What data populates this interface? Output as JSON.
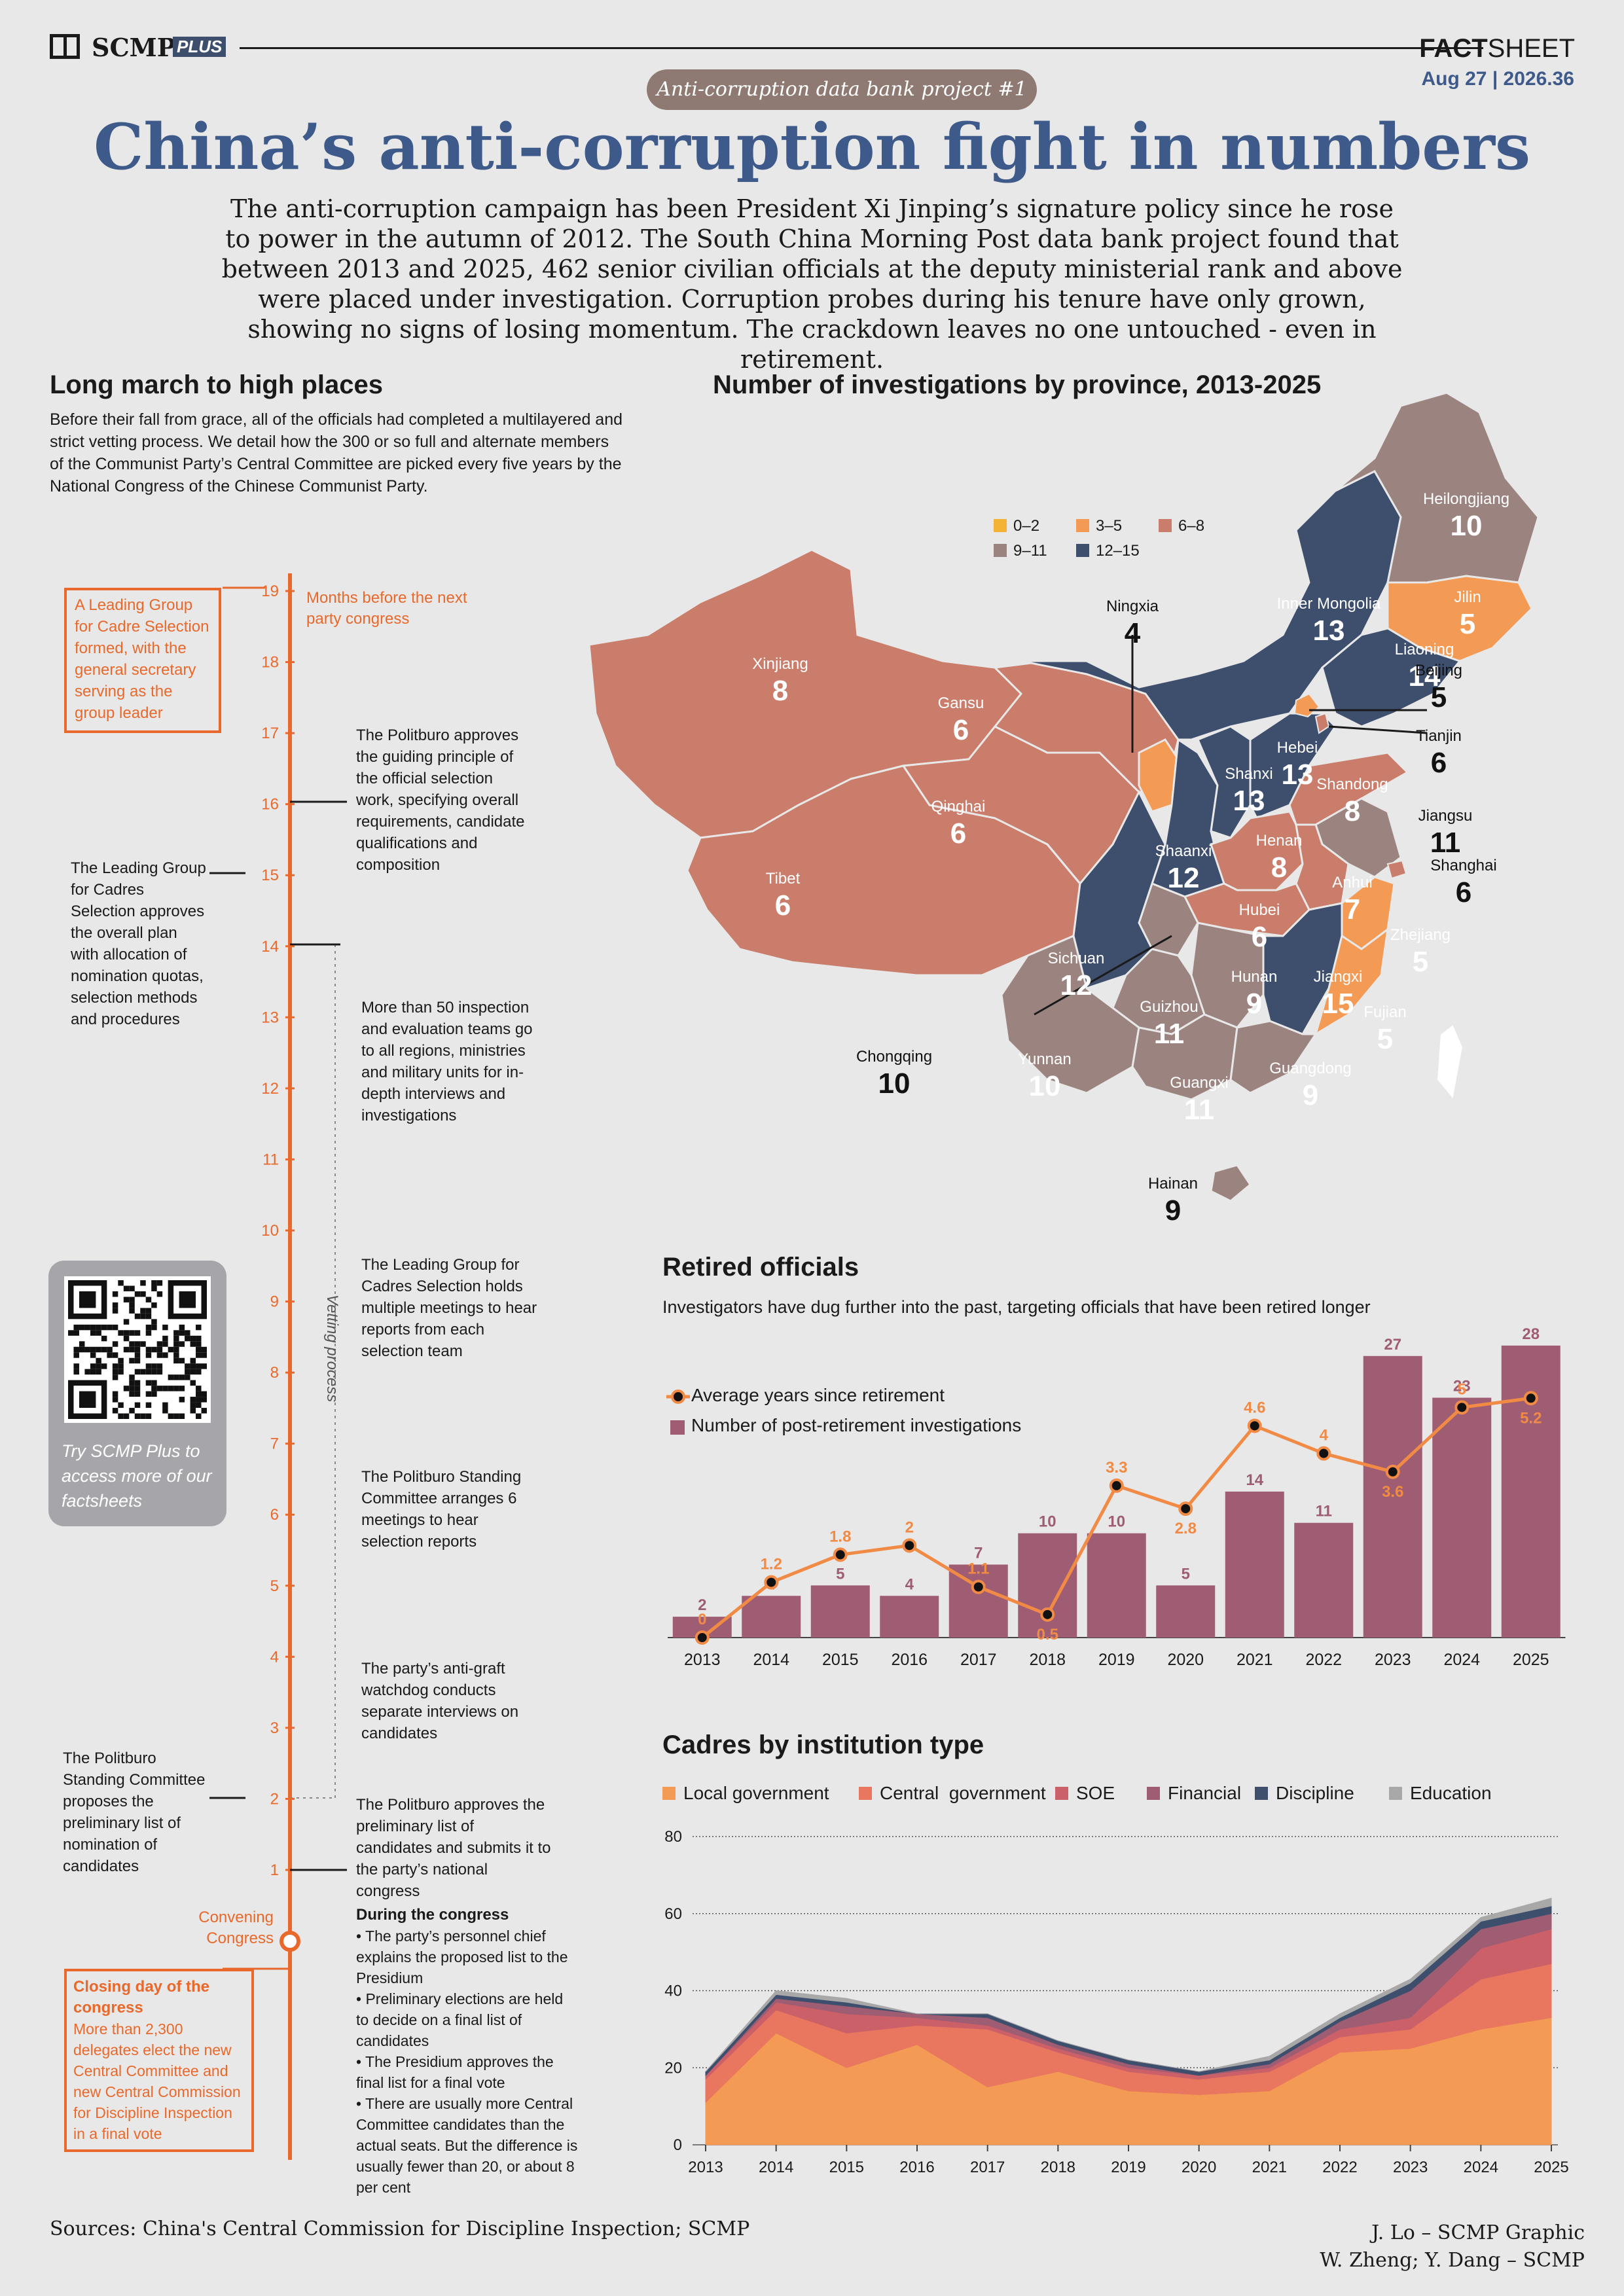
{
  "header": {
    "brand": "SCMP",
    "brand_plus": "PLUS",
    "factsheet_bold": "FACT",
    "factsheet_light": "SHEET",
    "date": "Aug 27 | 2026.36",
    "badge": "Anti-corruption data bank project #1",
    "title": "China’s anti-corruption fight in numbers",
    "intro": "The anti-corruption campaign has been President Xi Jinping’s signature policy since he rose to power in the autumn of 2012. The South China Morning Post data bank project found that between 2013 and 2025, 462 senior civilian officials at the deputy ministerial rank and above were placed under investigation. Corruption probes during his tenure have only grown, showing no signs of losing momentum. The crackdown leaves no one untouched - even in retirement."
  },
  "timeline": {
    "title": "Long march to high places",
    "intro": "Before their fall from grace, all of the officials had completed a multilayered and strict vetting process. We detail how the 300 or so full and alternate members of the Communist Party’s Central Committee are picked every five years by the National Congress of the Chinese Communist Party.",
    "axis_label": "Months before the next party congress",
    "vetting_label": "Vetting process",
    "convening_label": "Convening Congress",
    "months": [
      "19",
      "18",
      "17",
      "16",
      "15",
      "14",
      "13",
      "12",
      "11",
      "10",
      "9",
      "8",
      "7",
      "6",
      "5",
      "4",
      "3",
      "2",
      "1"
    ],
    "box_leading": "A Leading Group for Cadre Selection formed, with the general secretary serving as the group leader",
    "note_16": "The Politburo approves the guiding principle of the official selection work, specifying overall requirements, candidate qualifications and composition",
    "note_15": "The Leading Group for Cadres Selection approves the overall plan with allocation of nomination quotas, selection methods and procedures",
    "note_13": "More than 50 inspection and evaluation teams go to all regions, ministries and military units for in-depth interviews and investigations",
    "note_9": "The Leading Group for Cadres Selection holds multiple meetings to hear reports from each selection team",
    "note_6": "The Politburo Standing Committee arranges 6 meetings to hear selection reports",
    "note_4": "The party’s anti-graft watchdog conducts separate interviews on candidates",
    "note_2": "The Politburo Standing Committee proposes the preliminary list of nomination of candidates",
    "note_1": "The Politburo approves the preliminary list of candidates and submits it to the party’s national congress",
    "during_title": "During the congress",
    "during_items": [
      "• The party’s personnel chief explains the proposed list to the Presidium",
      "• Preliminary elections are held to decide on a final list of candidates",
      "• The Presidium approves the final list for a final vote",
      "• There are usually more Central Committee candidates than the actual seats. But the difference is usually fewer than 20, or about 8 per cent"
    ],
    "closing_title": "Closing day of the congress",
    "closing_text": "More than 2,300 delegates elect the new Central Committee and new Central Commission for Discipline Inspection in a final vote",
    "qr_text": "Try SCMP Plus to access more of our factsheets"
  },
  "map": {
    "title": "Number of investigations by province, 2013-2025",
    "legend": [
      {
        "label": "0–2",
        "color": "#f5b335"
      },
      {
        "label": "3–5",
        "color": "#f39a55"
      },
      {
        "label": "6–8",
        "color": "#c97d6a"
      },
      {
        "label": "9–11",
        "color": "#9b8480"
      },
      {
        "label": "12–15",
        "color": "#3e4e6d"
      }
    ],
    "provinces": [
      {
        "name": "Heilongjiang",
        "value": "10"
      },
      {
        "name": "Jilin",
        "value": "5"
      },
      {
        "name": "Liaoning",
        "value": "14"
      },
      {
        "name": "Inner Mongolia",
        "value": "13"
      },
      {
        "name": "Xinjiang",
        "value": "8"
      },
      {
        "name": "Gansu",
        "value": "6"
      },
      {
        "name": "Qinghai",
        "value": "6"
      },
      {
        "name": "Tibet",
        "value": "6"
      },
      {
        "name": "Ningxia",
        "value": "4"
      },
      {
        "name": "Beijing",
        "value": "5"
      },
      {
        "name": "Tianjin",
        "value": "6"
      },
      {
        "name": "Hebei",
        "value": "13"
      },
      {
        "name": "Shanxi",
        "value": "13"
      },
      {
        "name": "Shandong",
        "value": "8"
      },
      {
        "name": "Jiangsu",
        "value": "11"
      },
      {
        "name": "Shanghai",
        "value": "6"
      },
      {
        "name": "Shaanxi",
        "value": "12"
      },
      {
        "name": "Henan",
        "value": "8"
      },
      {
        "name": "Anhui",
        "value": "7"
      },
      {
        "name": "Hubei",
        "value": "6"
      },
      {
        "name": "Zhejiang",
        "value": "5"
      },
      {
        "name": "Sichuan",
        "value": "12"
      },
      {
        "name": "Chongqing",
        "value": "10"
      },
      {
        "name": "Hunan",
        "value": "9"
      },
      {
        "name": "Jiangxi",
        "value": "15"
      },
      {
        "name": "Fujian",
        "value": "5"
      },
      {
        "name": "Guizhou",
        "value": "11"
      },
      {
        "name": "Yunnan",
        "value": "10"
      },
      {
        "name": "Guangxi",
        "value": "11"
      },
      {
        "name": "Guangdong",
        "value": "9"
      },
      {
        "name": "Hainan",
        "value": "9"
      }
    ]
  },
  "chart_data": [
    {
      "type": "bar",
      "title": "Retired officials",
      "subtitle": "Investigators have dug further into the past, targeting officials that have been retired longer",
      "categories": [
        "2013",
        "2014",
        "2015",
        "2016",
        "2017",
        "2018",
        "2019",
        "2020",
        "2021",
        "2022",
        "2023",
        "2024",
        "2025"
      ],
      "series": [
        {
          "name": "Number of post-retirement investigations",
          "type": "bar",
          "color": "#9e5d72",
          "values": [
            2,
            4,
            5,
            4,
            7,
            10,
            10,
            5,
            14,
            11,
            27,
            23,
            28
          ]
        },
        {
          "name": "Average years since retirement",
          "type": "line",
          "color": "#f08a45",
          "values": [
            0,
            1.2,
            1.8,
            2,
            1.1,
            0.5,
            3.3,
            2.8,
            4.6,
            4,
            3.6,
            5,
            5.2
          ]
        }
      ],
      "ylim": [
        0,
        30
      ]
    },
    {
      "type": "area",
      "title": "Cadres by institution type",
      "x": [
        "2013",
        "2014",
        "2015",
        "2016",
        "2017",
        "2018",
        "2019",
        "2020",
        "2021",
        "2022",
        "2023",
        "2024",
        "2025"
      ],
      "y_ticks": [
        "0",
        "20",
        "40",
        "60",
        "80"
      ],
      "ylim": [
        0,
        80
      ],
      "series": [
        {
          "name": "Local government",
          "color": "#f39a55",
          "values": [
            11,
            29,
            20,
            26,
            15,
            19,
            14,
            13,
            14,
            24,
            25,
            30,
            33
          ]
        },
        {
          "name": "Central  government",
          "color": "#e9775f",
          "values": [
            6,
            6,
            9,
            5,
            15,
            5,
            5,
            4,
            5,
            4,
            5,
            13,
            14
          ]
        },
        {
          "name": "SOE",
          "color": "#cc6069",
          "values": [
            1,
            2,
            5,
            2,
            1,
            1,
            1,
            1,
            1,
            2,
            3,
            8,
            9
          ]
        },
        {
          "name": "Financial",
          "color": "#9e5d72",
          "values": [
            0,
            1,
            2,
            1,
            2,
            1,
            1,
            0,
            1,
            2,
            7,
            5,
            4
          ]
        },
        {
          "name": "Discipline",
          "color": "#3e4e6d",
          "values": [
            1,
            1,
            1,
            0,
            1,
            1,
            1,
            1,
            1,
            1,
            2,
            2,
            2
          ]
        },
        {
          "name": "Education",
          "color": "#a8a8a8",
          "values": [
            0,
            1,
            1,
            0,
            0,
            0,
            0,
            0,
            1,
            1,
            1,
            1,
            2
          ]
        }
      ]
    }
  ],
  "footer": {
    "sources": "Sources: China's Central Commission for Discipline Inspection; SCMP",
    "credit1": "J. Lo – SCMP Graphic",
    "credit2": "W. Zheng; Y. Dang – SCMP"
  }
}
